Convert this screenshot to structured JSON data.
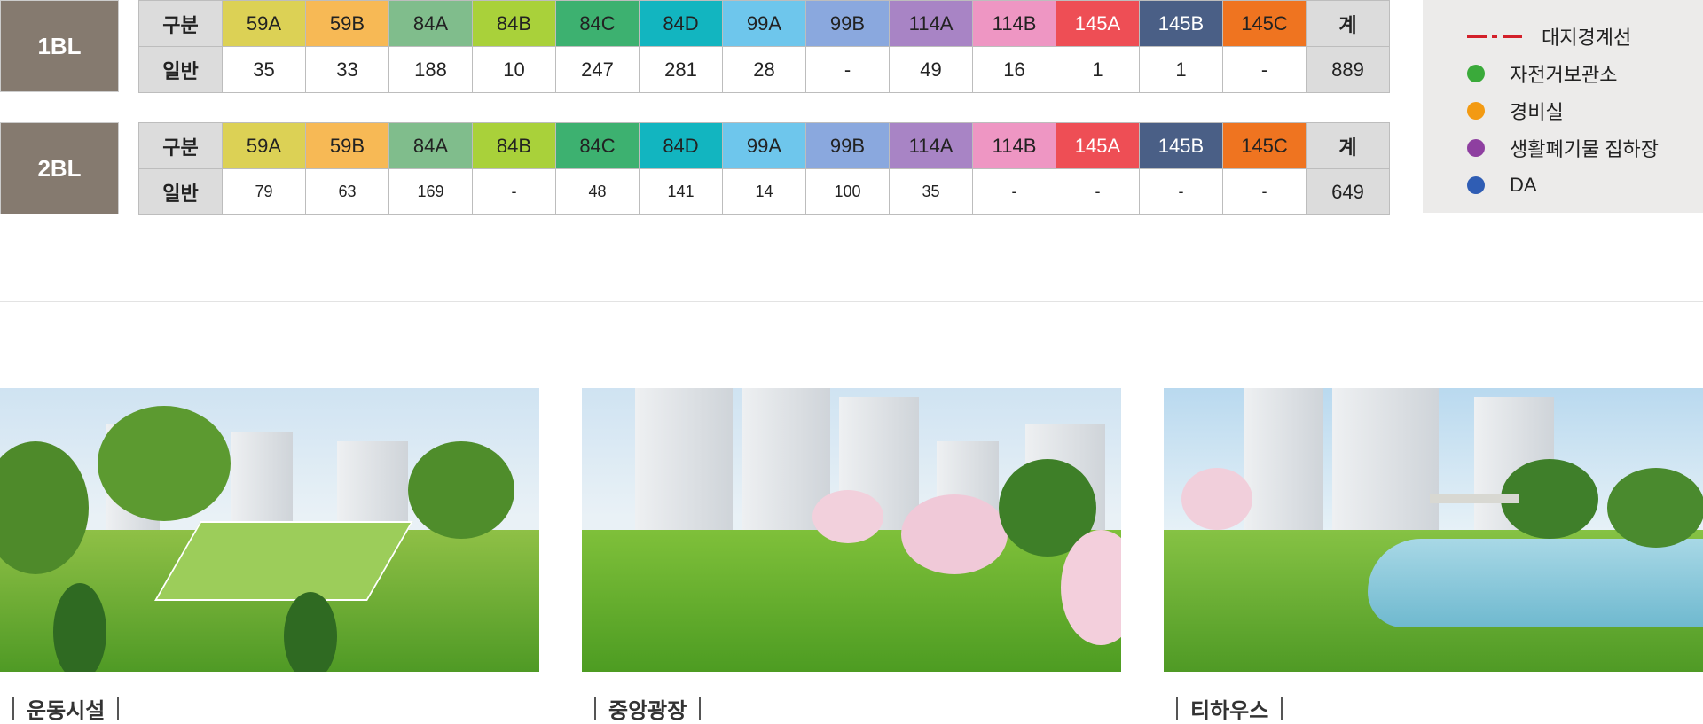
{
  "blocks": [
    {
      "name": "1BL",
      "row_label_header": "구분",
      "row_label_value": "일반",
      "types": [
        "59A",
        "59B",
        "84A",
        "84B",
        "84C",
        "84D",
        "99A",
        "99B",
        "114A",
        "114B",
        "145A",
        "145B",
        "145C"
      ],
      "values": [
        "35",
        "33",
        "188",
        "10",
        "247",
        "281",
        "28",
        "-",
        "49",
        "16",
        "1",
        "1",
        "-"
      ],
      "total_label": "계",
      "total": "889"
    },
    {
      "name": "2BL",
      "row_label_header": "구분",
      "row_label_value": "일반",
      "types": [
        "59A",
        "59B",
        "84A",
        "84B",
        "84C",
        "84D",
        "99A",
        "99B",
        "114A",
        "114B",
        "145A",
        "145B",
        "145C"
      ],
      "values": [
        "79",
        "63",
        "169",
        "-",
        "48",
        "141",
        "14",
        "100",
        "35",
        "-",
        "-",
        "-",
        "-"
      ],
      "total_label": "계",
      "total": "649"
    }
  ],
  "type_colors": [
    "#dcd155",
    "#f7b955",
    "#80bd8c",
    "#a9d13a",
    "#3db170",
    "#12b5c0",
    "#6ec6ec",
    "#8aa8de",
    "#a884c5",
    "#ee96c3",
    "#ee4e55",
    "#4a5f86",
    "#ef7420"
  ],
  "type_text_colors": [
    "#222",
    "#222",
    "#222",
    "#222",
    "#222",
    "#222",
    "#222",
    "#222",
    "#222",
    "#222",
    "#fff",
    "#fff",
    "#222"
  ],
  "legend": [
    {
      "icon": "boundary-line",
      "label": "대지경계선",
      "color": "#d3202a"
    },
    {
      "icon": "dot",
      "label": "자전거보관소",
      "color": "#3aaa3a"
    },
    {
      "icon": "dot",
      "label": "경비실",
      "color": "#f39a12"
    },
    {
      "icon": "dot",
      "label": "생활폐기물 집하장",
      "color": "#8e3fa0"
    },
    {
      "icon": "dot",
      "label": "DA",
      "color": "#2f5db4"
    }
  ],
  "photos": [
    {
      "caption": "운동시설"
    },
    {
      "caption": "중앙광장"
    },
    {
      "caption": "티하우스"
    }
  ]
}
